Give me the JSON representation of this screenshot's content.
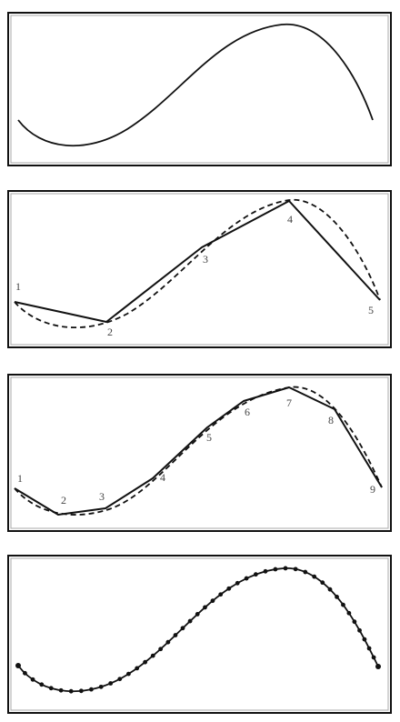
{
  "panel_2": {
    "point_labels": [
      "1",
      "2",
      "3",
      "4",
      "5"
    ]
  },
  "panel_3": {
    "point_labels": [
      "1",
      "2",
      "3",
      "4",
      "5",
      "6",
      "7",
      "8",
      "9"
    ]
  }
}
